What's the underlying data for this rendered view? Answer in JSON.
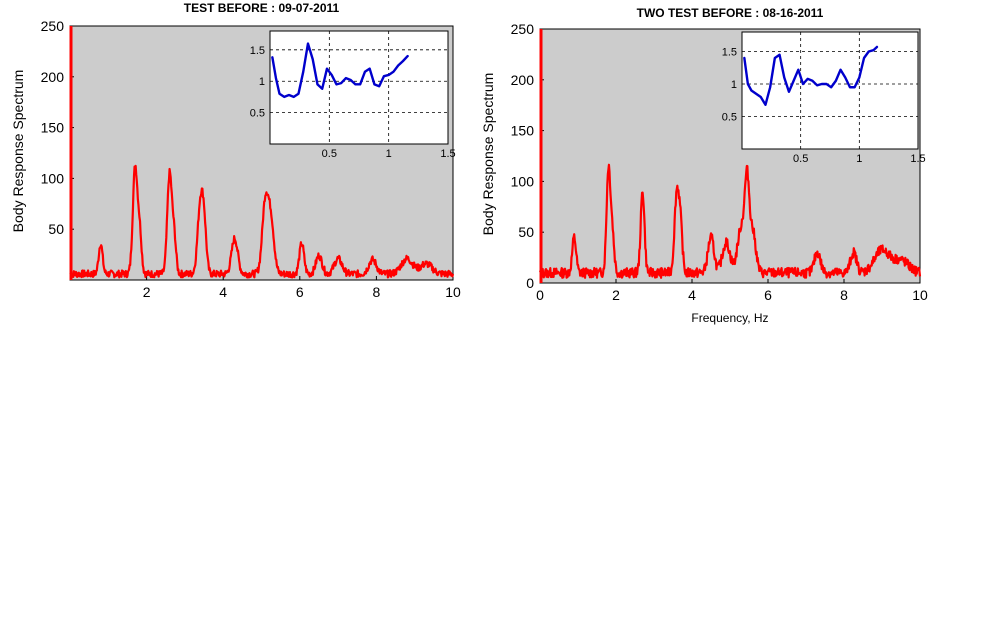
{
  "chart_data": [
    {
      "type": "line",
      "title": "TEST BEFORE : 09-07-2011",
      "xlabel": "",
      "ylabel": "Body Response Spectrum",
      "xlim": [
        0,
        10
      ],
      "ylim": [
        0,
        250
      ],
      "xticks": [
        2,
        4,
        6,
        8,
        10
      ],
      "yticks": [
        50,
        100,
        150,
        200,
        250
      ],
      "xtick_labels": [
        "2",
        "4",
        "6",
        "8",
        "10"
      ],
      "ytick_labels": [
        "50",
        "100",
        "150",
        "200",
        "250"
      ],
      "background": "#cccccc",
      "grid": false,
      "series": [
        {
          "color": "#ff0000",
          "baseline": 6,
          "peaks": [
            [
              0.8,
              30,
              0.05
            ],
            [
              1.7,
              105,
              0.06
            ],
            [
              1.82,
              40,
              0.05
            ],
            [
              2.6,
              98,
              0.06
            ],
            [
              2.72,
              35,
              0.05
            ],
            [
              3.4,
              65,
              0.07
            ],
            [
              3.5,
              45,
              0.06
            ],
            [
              4.3,
              35,
              0.08
            ],
            [
              5.1,
              70,
              0.08
            ],
            [
              5.25,
              50,
              0.08
            ],
            [
              6.05,
              30,
              0.06
            ],
            [
              6.5,
              18,
              0.08
            ],
            [
              7.0,
              15,
              0.1
            ],
            [
              7.9,
              14,
              0.1
            ],
            [
              8.8,
              15,
              0.15
            ],
            [
              9.3,
              10,
              0.15
            ]
          ],
          "noise": 5
        }
      ],
      "inset": {
        "xlim": [
          0,
          1.5
        ],
        "ylim": [
          0,
          1.8
        ],
        "xticks": [
          0.5,
          1,
          1.5
        ],
        "yticks": [
          0.5,
          1,
          1.5
        ],
        "xtick_labels": [
          "0.5",
          "1",
          "1.5"
        ],
        "ytick_labels": [
          "0.5",
          "1",
          "1.5"
        ],
        "grid": true,
        "series": [
          {
            "color": "#0000cc",
            "x": [
              0.02,
              0.05,
              0.08,
              0.12,
              0.16,
              0.2,
              0.24,
              0.28,
              0.32,
              0.36,
              0.4,
              0.44,
              0.48,
              0.52,
              0.56,
              0.6,
              0.64,
              0.68,
              0.72,
              0.76,
              0.8,
              0.84,
              0.88,
              0.92,
              0.96,
              1.0,
              1.04,
              1.08,
              1.12,
              1.16
            ],
            "y": [
              1.38,
              1.05,
              0.8,
              0.75,
              0.78,
              0.75,
              0.8,
              1.15,
              1.6,
              1.35,
              0.95,
              0.88,
              1.2,
              1.1,
              0.95,
              0.97,
              1.05,
              1.02,
              0.95,
              0.95,
              1.15,
              1.2,
              0.95,
              0.92,
              1.08,
              1.1,
              1.15,
              1.25,
              1.32,
              1.4
            ]
          }
        ]
      }
    },
    {
      "type": "line",
      "title": "TWO TEST BEFORE : 08-16-2011",
      "xlabel": "Frequency, Hz",
      "ylabel": "Body Response Spectrum",
      "xlim": [
        0,
        10
      ],
      "ylim": [
        0,
        250
      ],
      "xticks": [
        0,
        2,
        4,
        6,
        8,
        10
      ],
      "yticks": [
        0,
        50,
        100,
        150,
        200,
        250
      ],
      "xtick_labels": [
        "0",
        "2",
        "4",
        "6",
        "8",
        "10"
      ],
      "ytick_labels": [
        "0",
        "50",
        "100",
        "150",
        "200",
        "250"
      ],
      "background": "#cccccc",
      "grid": false,
      "series": [
        {
          "color": "#ff0000",
          "baseline": 10,
          "peaks": [
            [
              0.9,
              35,
              0.05
            ],
            [
              1.8,
              100,
              0.05
            ],
            [
              1.9,
              40,
              0.05
            ],
            [
              2.7,
              80,
              0.05
            ],
            [
              3.6,
              78,
              0.06
            ],
            [
              3.7,
              40,
              0.05
            ],
            [
              4.5,
              35,
              0.08
            ],
            [
              4.9,
              30,
              0.1
            ],
            [
              5.3,
              45,
              0.1
            ],
            [
              5.45,
              80,
              0.06
            ],
            [
              5.6,
              40,
              0.08
            ],
            [
              7.3,
              20,
              0.08
            ],
            [
              8.25,
              20,
              0.08
            ],
            [
              9.0,
              22,
              0.2
            ],
            [
              9.5,
              12,
              0.2
            ]
          ],
          "noise": 7
        }
      ],
      "inset": {
        "xlim": [
          0,
          1.5
        ],
        "ylim": [
          0,
          1.8
        ],
        "xticks": [
          0.5,
          1,
          1.5
        ],
        "yticks": [
          0.5,
          1,
          1.5
        ],
        "xtick_labels": [
          "0.5",
          "1",
          "1.5"
        ],
        "ytick_labels": [
          "0.5",
          "1",
          "1.5"
        ],
        "grid": true,
        "series": [
          {
            "color": "#0000cc",
            "x": [
              0.02,
              0.05,
              0.08,
              0.12,
              0.16,
              0.2,
              0.24,
              0.28,
              0.32,
              0.36,
              0.4,
              0.44,
              0.48,
              0.52,
              0.56,
              0.6,
              0.64,
              0.68,
              0.72,
              0.76,
              0.8,
              0.84,
              0.88,
              0.92,
              0.96,
              1.0,
              1.04,
              1.08,
              1.12,
              1.15
            ],
            "y": [
              1.4,
              1.0,
              0.9,
              0.85,
              0.8,
              0.68,
              0.95,
              1.4,
              1.45,
              1.1,
              0.88,
              1.05,
              1.22,
              1.0,
              1.08,
              1.05,
              0.98,
              1.0,
              1.0,
              0.95,
              1.05,
              1.22,
              1.1,
              0.95,
              0.95,
              1.1,
              1.4,
              1.5,
              1.52,
              1.57
            ]
          }
        ]
      }
    }
  ]
}
